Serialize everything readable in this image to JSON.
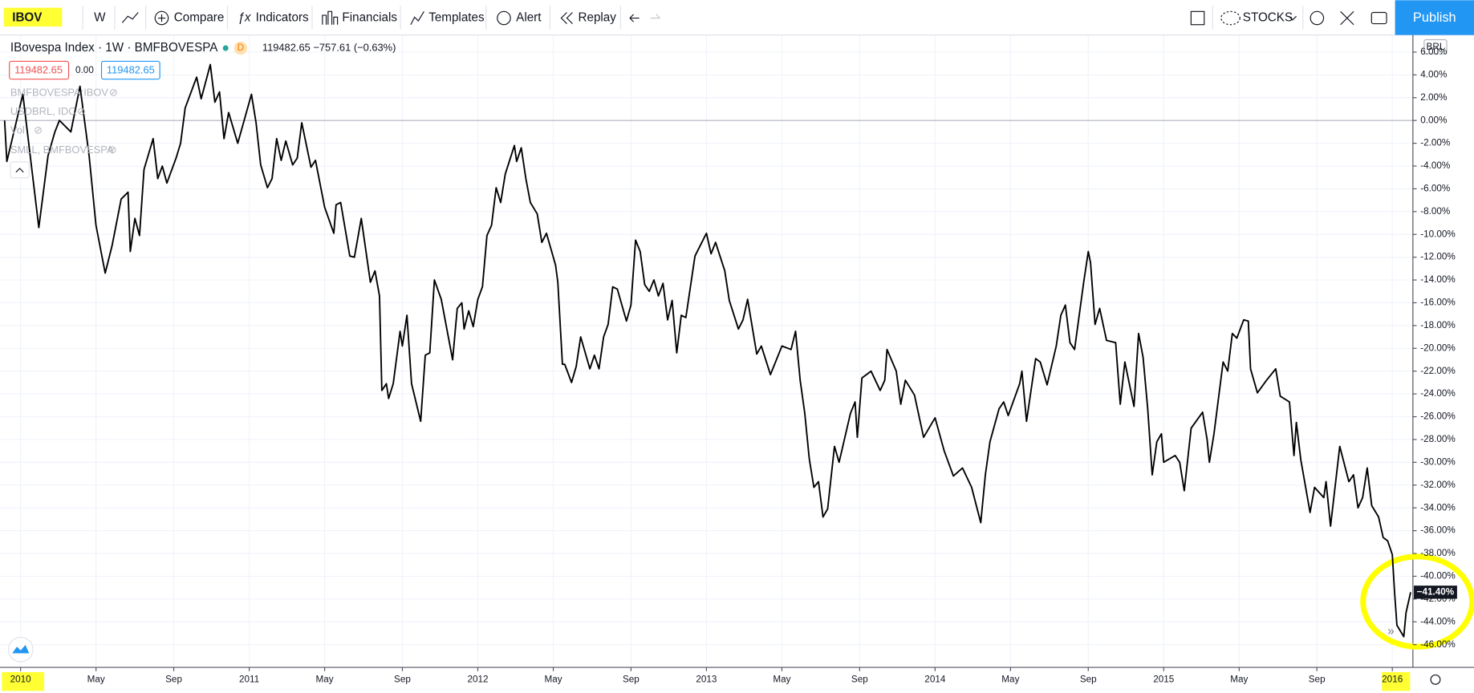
{
  "toolbar": {
    "symbol": "IBOV",
    "interval": "W",
    "items": [
      "Compare",
      "Indicators",
      "Financials",
      "Templates",
      "Alert",
      "Replay"
    ],
    "layout": "STOCKS",
    "publish": "Publish"
  },
  "legend": {
    "title": "IBovespa Index · 1W · BMFBOVESPA",
    "badge": "D",
    "quote": "119482.65  −757.61 (−0.63%)",
    "bid": "119482.65",
    "spread": "0.00",
    "ask": "119482.65",
    "studies": [
      "BMFBOVESPA:IBOV",
      "USDBRL, IDC",
      "Vol",
      "SMLL, BMFBOVESPA"
    ]
  },
  "currency": "BRL",
  "chart_data": {
    "type": "line",
    "color": "#000000",
    "grid": true,
    "baseline": 0,
    "last_label": "−41.40%",
    "xlim": [
      2009.91,
      2016.09
    ],
    "ylim": [
      -48,
      7.5
    ],
    "xticks": [
      {
        "value": 2010,
        "label": "2010"
      },
      {
        "value": 2010.33,
        "label": "May"
      },
      {
        "value": 2010.67,
        "label": "Sep"
      },
      {
        "value": 2011,
        "label": "2011"
      },
      {
        "value": 2011.33,
        "label": "May"
      },
      {
        "value": 2011.67,
        "label": "Sep"
      },
      {
        "value": 2012,
        "label": "2012"
      },
      {
        "value": 2012.33,
        "label": "May"
      },
      {
        "value": 2012.67,
        "label": "Sep"
      },
      {
        "value": 2013,
        "label": "2013"
      },
      {
        "value": 2013.33,
        "label": "May"
      },
      {
        "value": 2013.67,
        "label": "Sep"
      },
      {
        "value": 2014,
        "label": "2014"
      },
      {
        "value": 2014.33,
        "label": "May"
      },
      {
        "value": 2014.67,
        "label": "Sep"
      },
      {
        "value": 2015,
        "label": "2015"
      },
      {
        "value": 2015.33,
        "label": "May"
      },
      {
        "value": 2015.67,
        "label": "Sep"
      },
      {
        "value": 2016,
        "label": "2016"
      }
    ],
    "yticks": [
      {
        "value": 6,
        "label": "6.00%"
      },
      {
        "value": 4,
        "label": "4.00%"
      },
      {
        "value": 2,
        "label": "2.00%"
      },
      {
        "value": 0,
        "label": "0.00%"
      },
      {
        "value": -2,
        "label": "-2.00%"
      },
      {
        "value": -4,
        "label": "-4.00%"
      },
      {
        "value": -6,
        "label": "-6.00%"
      },
      {
        "value": -8,
        "label": "-8.00%"
      },
      {
        "value": -10,
        "label": "-10.00%"
      },
      {
        "value": -12,
        "label": "-12.00%"
      },
      {
        "value": -14,
        "label": "-14.00%"
      },
      {
        "value": -16,
        "label": "-16.00%"
      },
      {
        "value": -18,
        "label": "-18.00%"
      },
      {
        "value": -20,
        "label": "-20.00%"
      },
      {
        "value": -22,
        "label": "-22.00%"
      },
      {
        "value": -24,
        "label": "-24.00%"
      },
      {
        "value": -26,
        "label": "-26.00%"
      },
      {
        "value": -28,
        "label": "-28.00%"
      },
      {
        "value": -30,
        "label": "-30.00%"
      },
      {
        "value": -32,
        "label": "-32.00%"
      },
      {
        "value": -34,
        "label": "-34.00%"
      },
      {
        "value": -36,
        "label": "-36.00%"
      },
      {
        "value": -38,
        "label": "-38.00%"
      },
      {
        "value": -40,
        "label": "-40.00%"
      },
      {
        "value": -42,
        "label": "-42.00%"
      },
      {
        "value": -44,
        "label": "-44.00%"
      },
      {
        "value": -46,
        "label": "-46.00%"
      }
    ],
    "x": [
      2009.93,
      2009.94,
      2010.01,
      2010.08,
      2010.12,
      2010.15,
      2010.17,
      2010.22,
      2010.26,
      2010.3,
      2010.33,
      2010.37,
      2010.4,
      2010.44,
      2010.47,
      2010.48,
      2010.5,
      2010.52,
      2010.54,
      2010.58,
      2010.6,
      2010.62,
      2010.64,
      2010.68,
      2010.7,
      2010.72,
      2010.77,
      2010.79,
      2010.83,
      2010.85,
      2010.87,
      2010.89,
      2010.91,
      2010.95,
      2011.01,
      2011.03,
      2011.05,
      2011.08,
      2011.1,
      2011.12,
      2011.14,
      2011.16,
      2011.19,
      2011.21,
      2011.23,
      2011.27,
      2011.29,
      2011.33,
      2011.37,
      2011.38,
      2011.4,
      2011.44,
      2011.46,
      2011.49,
      2011.53,
      2011.55,
      2011.57,
      2011.58,
      2011.6,
      2011.61,
      2011.63,
      2011.66,
      2011.67,
      2011.69,
      2011.71,
      2011.75,
      2011.77,
      2011.79,
      2011.81,
      2011.84,
      2011.89,
      2011.91,
      2011.93,
      2011.94,
      2011.96,
      2011.98,
      2012.0,
      2012.02,
      2012.04,
      2012.06,
      2012.08,
      2012.1,
      2012.12,
      2012.16,
      2012.17,
      2012.19,
      2012.21,
      2012.23,
      2012.26,
      2012.28,
      2012.3,
      2012.34,
      2012.35,
      2012.37,
      2012.38,
      2012.41,
      2012.43,
      2012.45,
      2012.49,
      2012.51,
      2012.53,
      2012.55,
      2012.57,
      2012.59,
      2012.61,
      2012.65,
      2012.67,
      2012.69,
      2012.71,
      2012.73,
      2012.75,
      2012.77,
      2012.79,
      2012.81,
      2012.83,
      2012.85,
      2012.87,
      2012.89,
      2012.91,
      2012.95,
      2013.0,
      2013.02,
      2013.04,
      2013.08,
      2013.1,
      2013.14,
      2013.16,
      2013.18,
      2013.22,
      2013.24,
      2013.28,
      2013.33,
      2013.37,
      2013.39,
      2013.41,
      2013.43,
      2013.45,
      2013.47,
      2013.49,
      2013.51,
      2013.53,
      2013.56,
      2013.58,
      2013.63,
      2013.65,
      2013.66,
      2013.68,
      2013.72,
      2013.76,
      2013.78,
      2013.79,
      2013.83,
      2013.85,
      2013.87,
      2013.91,
      2013.95,
      2014.0,
      2014.04,
      2014.08,
      2014.12,
      2014.16,
      2014.2,
      2014.22,
      2014.24,
      2014.28,
      2014.3,
      2014.32,
      2014.37,
      2014.38,
      2014.4,
      2014.44,
      2014.46,
      2014.49,
      2014.53,
      2014.55,
      2014.57,
      2014.59,
      2014.61,
      2014.65,
      2014.67,
      2014.68,
      2014.7,
      2014.72,
      2014.75,
      2014.79,
      2014.81,
      2014.83,
      2014.87,
      2014.89,
      2014.91,
      2014.93,
      2014.95,
      2014.97,
      2014.99,
      2015.0,
      2015.05,
      2015.07,
      2015.09,
      2015.12,
      2015.17,
      2015.19,
      2015.2,
      2015.22,
      2015.26,
      2015.28,
      2015.3,
      2015.32,
      2015.35,
      2015.37,
      2015.38,
      2015.41,
      2015.45,
      2015.49,
      2015.51,
      2015.55,
      2015.57,
      2015.58,
      2015.6,
      2015.64,
      2015.66,
      2015.7,
      2015.71,
      2015.73,
      2015.77,
      2015.81,
      2015.83,
      2015.85,
      2015.87,
      2015.89,
      2015.91,
      2015.94,
      2015.96,
      2015.98,
      2016.0,
      2016.01,
      2016.02,
      2016.05,
      2016.06,
      2016.08
    ],
    "values": [
      0,
      -3.6,
      2.3,
      -9.4,
      -3.1,
      -1.0,
      0,
      -1.0,
      3.0,
      -3.1,
      -9.2,
      -13.4,
      -11.0,
      -6.9,
      -6.3,
      -11.5,
      -8.6,
      -10.1,
      -4.3,
      -1.6,
      -5.1,
      -4.0,
      -5.5,
      -3.3,
      -2.0,
      1.1,
      3.8,
      1.9,
      4.9,
      1.6,
      2.5,
      -1.6,
      0.7,
      -2.0,
      2.3,
      -0.2,
      -3.9,
      -5.9,
      -5.1,
      -1.6,
      -3.5,
      -1.8,
      -3.9,
      -3.3,
      -0.2,
      -4.1,
      -3.5,
      -7.6,
      -9.9,
      -7.4,
      -7.2,
      -11.9,
      -12.0,
      -8.6,
      -14.2,
      -13.2,
      -15.4,
      -23.7,
      -23.1,
      -24.4,
      -23.1,
      -18.5,
      -19.8,
      -17.1,
      -23.1,
      -26.4,
      -20.6,
      -20.4,
      -14.0,
      -15.7,
      -21.0,
      -16.5,
      -16.0,
      -18.3,
      -16.7,
      -18.1,
      -15.7,
      -14.6,
      -10.1,
      -9.2,
      -5.9,
      -7.2,
      -4.7,
      -2.2,
      -3.6,
      -2.4,
      -5.1,
      -7.2,
      -8.2,
      -10.7,
      -9.9,
      -12.7,
      -14.2,
      -21.4,
      -21.4,
      -23.0,
      -21.6,
      -19.0,
      -21.8,
      -20.6,
      -21.8,
      -19.0,
      -17.9,
      -14.6,
      -14.8,
      -17.6,
      -16.2,
      -10.5,
      -11.5,
      -14.4,
      -15.0,
      -14.0,
      -15.4,
      -14.3,
      -17.5,
      -15.8,
      -20.4,
      -17.1,
      -17.3,
      -11.9,
      -9.9,
      -11.7,
      -10.7,
      -13.2,
      -15.8,
      -18.3,
      -17.5,
      -15.7,
      -20.5,
      -19.8,
      -22.3,
      -19.8,
      -20.1,
      -18.5,
      -22.8,
      -25.7,
      -29.7,
      -32.2,
      -31.7,
      -34.8,
      -34.1,
      -28.6,
      -30.0,
      -25.7,
      -24.7,
      -27.8,
      -22.6,
      -22.0,
      -23.7,
      -22.8,
      -20.1,
      -22.0,
      -24.9,
      -22.8,
      -24.1,
      -27.8,
      -26.1,
      -29.0,
      -31.2,
      -30.5,
      -32.2,
      -35.3,
      -31.1,
      -28.2,
      -25.3,
      -24.7,
      -25.9,
      -23.1,
      -22.0,
      -26.4,
      -20.9,
      -21.2,
      -23.2,
      -19.8,
      -17.1,
      -16.2,
      -19.5,
      -20.1,
      -14.2,
      -11.5,
      -12.5,
      -17.9,
      -16.5,
      -19.3,
      -19.5,
      -24.9,
      -21.2,
      -25.1,
      -18.7,
      -20.8,
      -25.3,
      -31.1,
      -28.2,
      -27.5,
      -30.0,
      -29.4,
      -30.0,
      -32.5,
      -27.0,
      -25.6,
      -28.0,
      -30.0,
      -27.5,
      -21.2,
      -22.0,
      -18.7,
      -19.1,
      -17.5,
      -17.6,
      -21.8,
      -23.9,
      -22.8,
      -21.8,
      -24.2,
      -24.7,
      -29.4,
      -26.5,
      -29.8,
      -34.4,
      -32.2,
      -33.1,
      -31.7,
      -35.6,
      -28.6,
      -31.7,
      -31.1,
      -34.0,
      -33.1,
      -30.5,
      -33.8,
      -34.8,
      -36.6,
      -36.9,
      -38.1,
      -41.4,
      -44.3,
      -45.3,
      -43.2,
      -41.4
    ]
  }
}
